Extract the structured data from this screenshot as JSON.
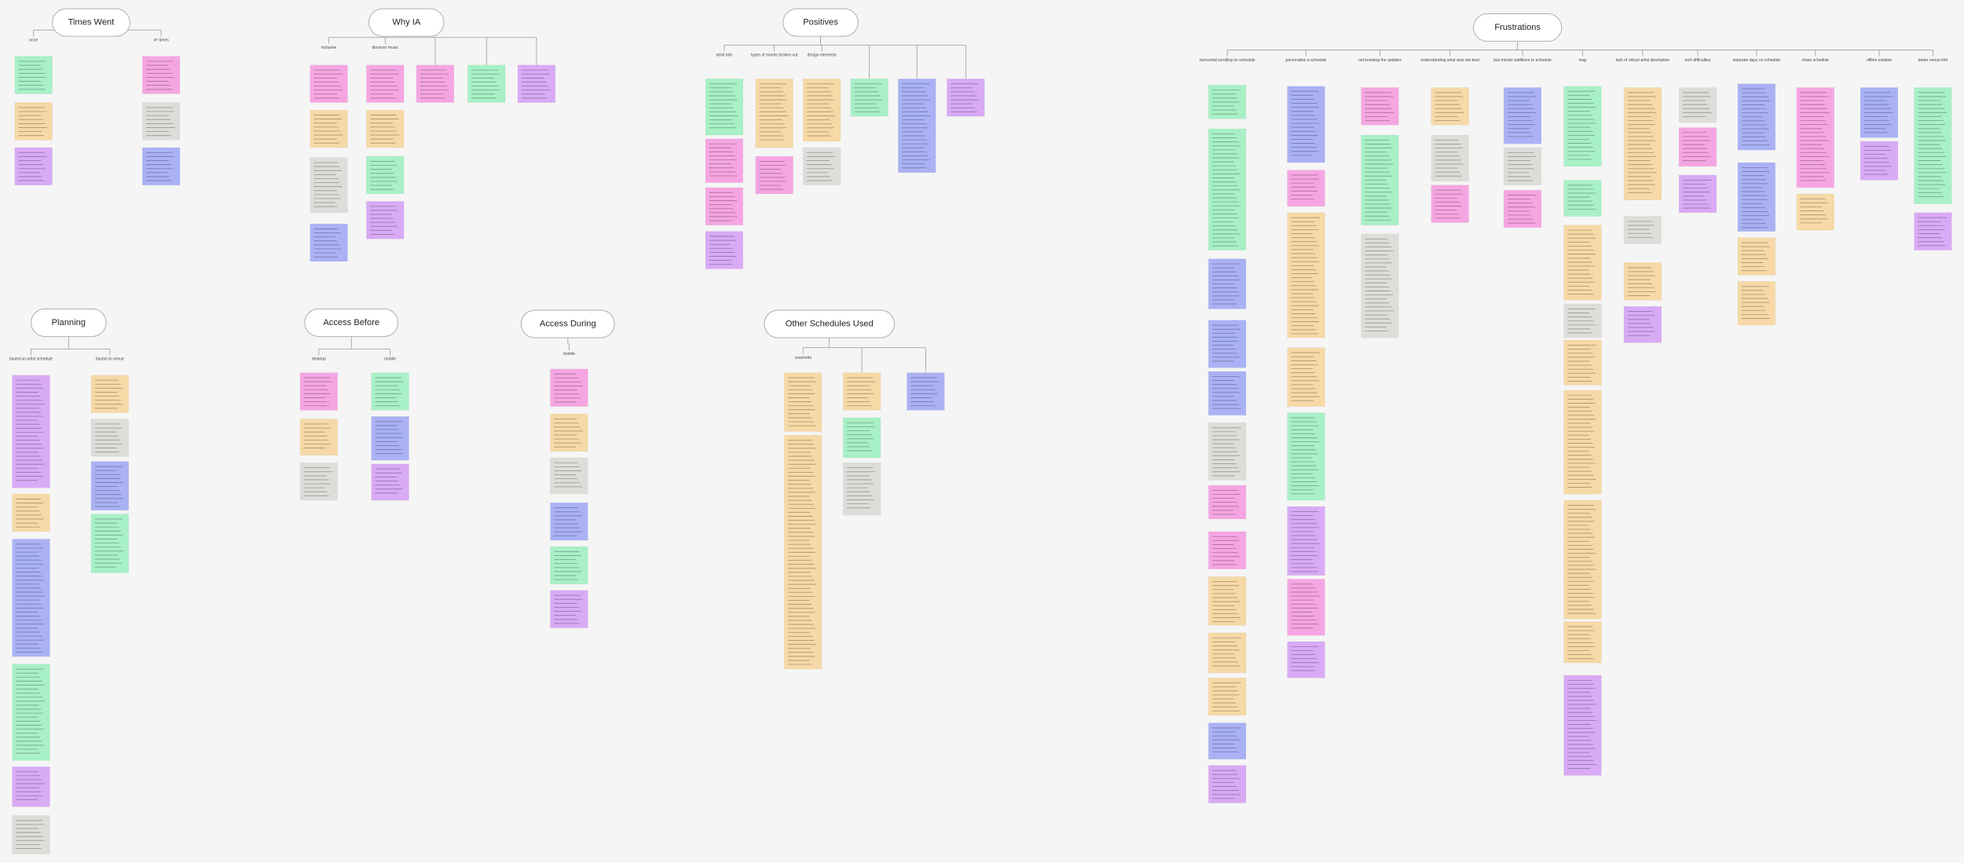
{
  "clusters": [
    {
      "title": "Times Went",
      "branches": [
        "once",
        "4+ times"
      ]
    },
    {
      "title": "Why IA",
      "branches": [
        "inclusive",
        "discover music"
      ]
    },
    {
      "title": "Positives",
      "branches": [
        "artist info",
        "types of events broken out",
        "design elements"
      ]
    },
    {
      "title": "Frustrations",
      "branches": [
        "horizontal scrolling on schedule",
        "personalize a schedule",
        "not knowing the updates",
        "understanding what acts are best",
        "last minute additions to schedule",
        "map",
        "lack of robust artist description",
        "tech difficulties",
        "separate days on schedule",
        "share schedule",
        "offline solution",
        "better venue info"
      ]
    },
    {
      "title": "Planning",
      "branches": [
        "based on artist schedule",
        "based on venue"
      ]
    },
    {
      "title": "Access Before",
      "branches": [
        "desktop",
        "mobile"
      ]
    },
    {
      "title": "Access During",
      "branches": [
        "mobile"
      ]
    },
    {
      "title": "Other Schedules Used",
      "branches": [
        "coachella"
      ]
    }
  ]
}
